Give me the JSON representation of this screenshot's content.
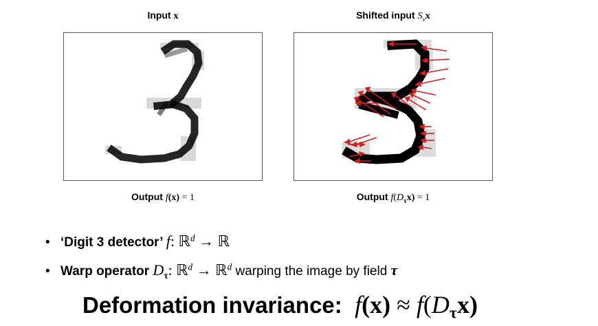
{
  "panels": {
    "left": {
      "title_text": "Input ",
      "title_math": "x",
      "output_text": "Output ",
      "output_func": "f",
      "output_arg": "(x)",
      "output_eq": " = 1"
    },
    "right": {
      "title_text": "Shifted input ",
      "title_op": "S",
      "title_sub": "v",
      "title_math": "x",
      "output_text": "Output ",
      "output_func": "f",
      "output_open": "(",
      "output_op": "D",
      "output_sub": "τ",
      "output_arg": "x)",
      "output_eq": " = 1"
    }
  },
  "bullets": [
    {
      "dot": "•",
      "bold": "‘Digit 3 detector’ ",
      "func": "f",
      "rest": ": ℝ",
      "sup": "d",
      "tail": " → ℝ"
    },
    {
      "dot": "•",
      "bold": "Warp operator ",
      "op": "D",
      "sub": "τ",
      "rest": ": ℝ",
      "sup1": "d",
      "mid": " → ℝ",
      "sup2": "d",
      "tail": " warping the image by field ",
      "field": "τ"
    }
  ],
  "headline": {
    "label": "Deformation invariance:",
    "lhs_func": "f",
    "lhs_arg": "(x)",
    "approx": " ≈ ",
    "rhs_func": "f",
    "rhs_open": "(",
    "rhs_op": "D",
    "rhs_sub": "τ",
    "rhs_arg": "x)"
  },
  "colors": {
    "ink": "#000000",
    "arrow": "#d22020",
    "frame": "#5a5a5a"
  }
}
